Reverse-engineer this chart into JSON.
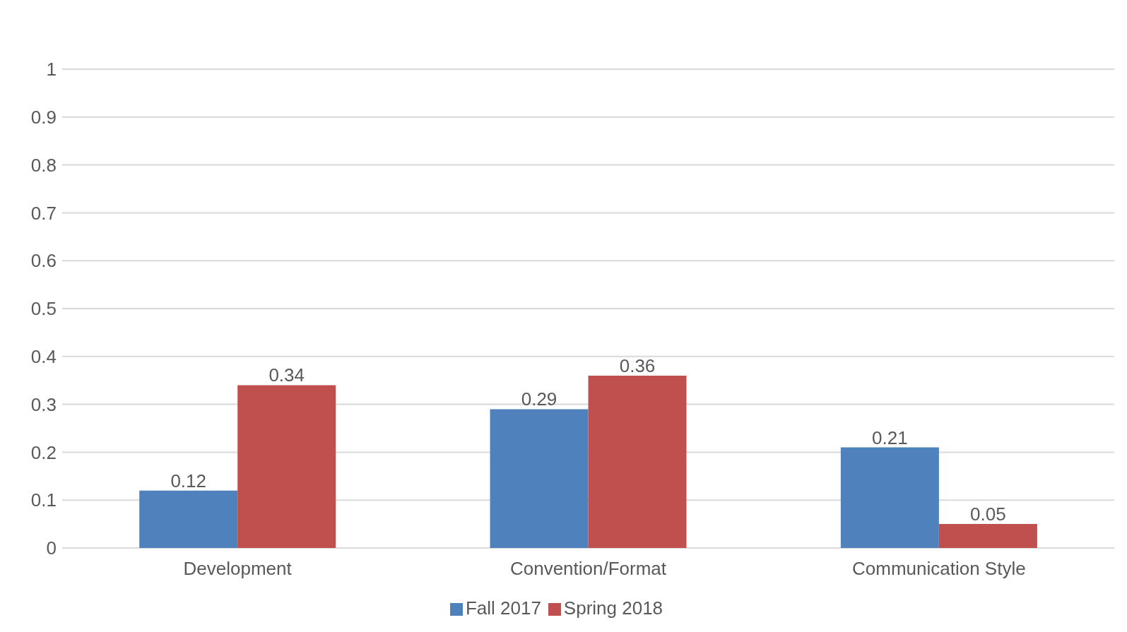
{
  "chart_data": {
    "type": "bar",
    "categories": [
      "Development",
      "Convention/Format",
      "Communication Style"
    ],
    "series": [
      {
        "name": "Fall 2017",
        "color": "#4f81bd",
        "values": [
          0.12,
          0.29,
          0.21
        ]
      },
      {
        "name": "Spring 2018",
        "color": "#c0504d",
        "values": [
          0.34,
          0.36,
          0.05
        ]
      }
    ],
    "ylim": [
      0,
      1
    ],
    "yticks": [
      0,
      0.1,
      0.2,
      0.3,
      0.4,
      0.5,
      0.6,
      0.7,
      0.8,
      0.9,
      1
    ],
    "grid": "y",
    "legend": "bottom",
    "data_labels": true
  }
}
